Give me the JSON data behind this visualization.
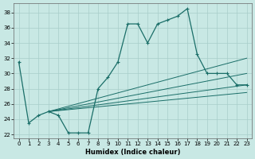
{
  "xlabel": "Humidex (Indice chaleur)",
  "bg_color": "#c8e8e4",
  "line_color": "#1a6e68",
  "grid_color": "#a8ceca",
  "xlim": [
    -0.5,
    23.5
  ],
  "ylim": [
    21.5,
    39.2
  ],
  "xticks": [
    0,
    1,
    2,
    3,
    4,
    5,
    6,
    7,
    8,
    9,
    10,
    11,
    12,
    13,
    14,
    15,
    16,
    17,
    18,
    19,
    20,
    21,
    22,
    23
  ],
  "yticks": [
    22,
    24,
    26,
    28,
    30,
    32,
    34,
    36,
    38
  ],
  "main_x": [
    0,
    1,
    2,
    3,
    4,
    5,
    6,
    7,
    8,
    9,
    10,
    11,
    12,
    13,
    14,
    15,
    16,
    17,
    18,
    19,
    20,
    21,
    22,
    23
  ],
  "main_y": [
    31.5,
    23.5,
    24.5,
    25.0,
    24.5,
    22.2,
    22.2,
    22.2,
    28.0,
    29.5,
    31.5,
    36.5,
    36.5,
    34.0,
    36.5,
    37.0,
    37.5,
    38.5,
    32.5,
    30.0,
    30.0,
    30.0,
    28.5,
    28.5
  ],
  "fan_lines": [
    {
      "x": [
        3,
        23
      ],
      "y": [
        25.0,
        32.0
      ]
    },
    {
      "x": [
        3,
        23
      ],
      "y": [
        25.0,
        30.0
      ]
    },
    {
      "x": [
        3,
        23
      ],
      "y": [
        25.0,
        28.5
      ]
    },
    {
      "x": [
        3,
        23
      ],
      "y": [
        25.0,
        27.5
      ]
    }
  ],
  "title_fontsize": 7,
  "tick_fontsize": 5,
  "xlabel_fontsize": 6
}
